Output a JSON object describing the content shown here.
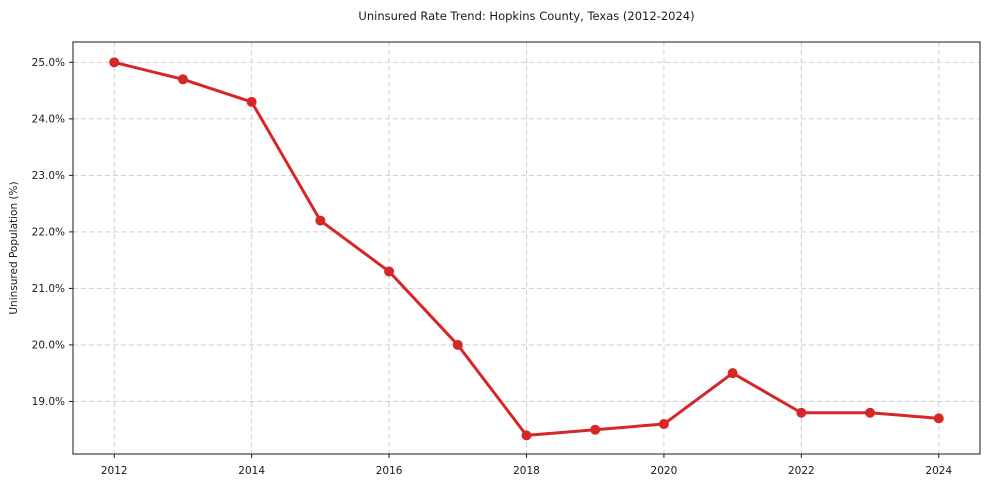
{
  "chart_data": {
    "type": "line",
    "title": "Uninsured Rate Trend: Hopkins County, Texas (2012-2024)",
    "xlabel": "",
    "ylabel": "Uninsured Population (%)",
    "x": [
      2012,
      2013,
      2014,
      2015,
      2016,
      2017,
      2018,
      2019,
      2020,
      2021,
      2022,
      2023,
      2024
    ],
    "values": [
      25.0,
      24.7,
      24.3,
      22.2,
      21.3,
      20.0,
      18.4,
      18.5,
      18.6,
      19.5,
      18.8,
      18.8,
      18.7
    ],
    "xticks": [
      2012,
      2014,
      2016,
      2018,
      2020,
      2022,
      2024
    ],
    "xtick_labels": [
      "2012",
      "2014",
      "2016",
      "2018",
      "2020",
      "2022",
      "2024"
    ],
    "yticks": [
      19.0,
      20.0,
      21.0,
      22.0,
      23.0,
      24.0,
      25.0
    ],
    "ytick_labels": [
      "19.0%",
      "20.0%",
      "21.0%",
      "22.0%",
      "23.0%",
      "24.0%",
      "25.0%"
    ],
    "xlim": [
      2011.4,
      2024.6
    ],
    "ylim": [
      18.07,
      25.36
    ],
    "grid": true,
    "grid_style": "dashed",
    "legend": false,
    "line_color": "#d62728",
    "marker": "circle",
    "marker_size": 5,
    "line_width": 3,
    "grid_color": "#cfcfcf",
    "axis_color": "#1a1a1a",
    "background": "#ffffff"
  }
}
